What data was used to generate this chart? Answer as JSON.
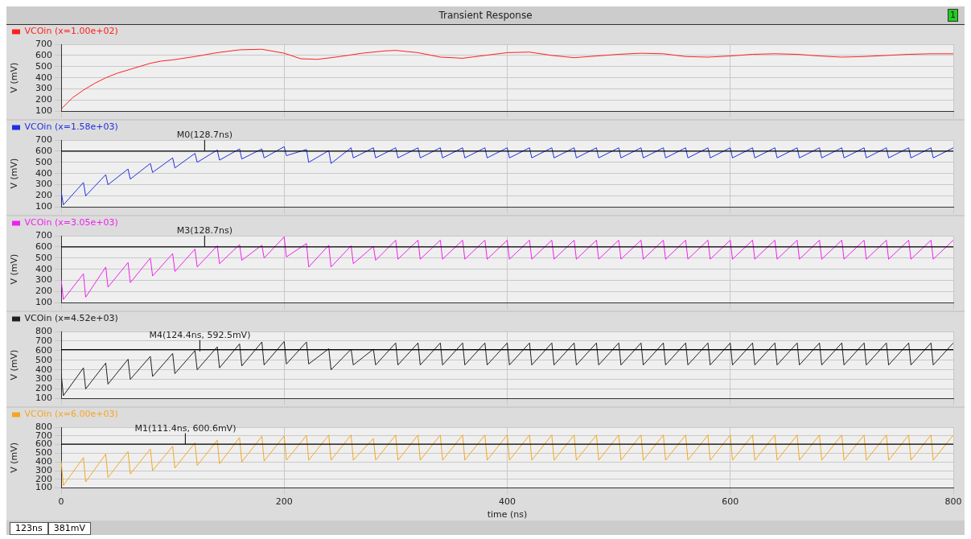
{
  "chart_data": [
    {
      "type": "line",
      "title": "Transient Response",
      "ylabel": "V (mV)",
      "xlim": [
        0,
        800
      ],
      "xticks": [
        0,
        200,
        400,
        600,
        800
      ],
      "ylim": [
        100,
        700
      ],
      "yticks": [
        100,
        200,
        300,
        400,
        500,
        600,
        700
      ],
      "grid": true,
      "legend": "top left",
      "tick_labels": "y",
      "annotations": [
        "1"
      ],
      "series": [
        {
          "name": "VCOin (x=1.00e+02)",
          "color": "#ff2020",
          "x": [
            0,
            10,
            20,
            30,
            40,
            50,
            60,
            70,
            80,
            90,
            100,
            120,
            140,
            160,
            180,
            200,
            215,
            230,
            250,
            270,
            290,
            300,
            320,
            340,
            360,
            380,
            400,
            420,
            440,
            460,
            480,
            500,
            520,
            540,
            560,
            580,
            600,
            620,
            640,
            660,
            680,
            700,
            720,
            740,
            760,
            780,
            800
          ],
          "values": [
            120,
            220,
            290,
            350,
            400,
            440,
            470,
            500,
            530,
            550,
            560,
            590,
            625,
            650,
            655,
            620,
            570,
            565,
            590,
            620,
            640,
            645,
            625,
            585,
            575,
            600,
            625,
            630,
            600,
            580,
            595,
            610,
            620,
            615,
            590,
            585,
            595,
            610,
            615,
            610,
            595,
            585,
            590,
            600,
            610,
            615,
            615
          ]
        }
      ]
    },
    {
      "type": "line",
      "ylabel": "V (mV)",
      "xlim": [
        0,
        800
      ],
      "xticks": [
        0,
        200,
        400,
        600,
        800
      ],
      "ylim": [
        100,
        700
      ],
      "yticks": [
        100,
        200,
        300,
        400,
        500,
        600,
        700
      ],
      "grid": true,
      "legend": "top left",
      "tick_labels": "y",
      "ref_lines": [
        {
          "axis": "y",
          "value": 600,
          "color": "#000000"
        }
      ],
      "annotations": [
        {
          "text": "M0(128.7ns)",
          "x": 128.7,
          "y": 600
        }
      ],
      "series": [
        {
          "name": "VCOin (x=1.58e+03)",
          "color": "#2030e0",
          "x": [
            0,
            2,
            20,
            22,
            40,
            42,
            60,
            62,
            80,
            82,
            100,
            102,
            120,
            122,
            140,
            142,
            160,
            162,
            180,
            182,
            200,
            202,
            220,
            222,
            240,
            242,
            260,
            262,
            280,
            282,
            300,
            302,
            320,
            322,
            340,
            342,
            360,
            362,
            380,
            382,
            400,
            402,
            420,
            422,
            440,
            442,
            460,
            462,
            480,
            482,
            500,
            502,
            520,
            522,
            540,
            542,
            560,
            562,
            580,
            582,
            600,
            602,
            620,
            622,
            640,
            642,
            660,
            662,
            680,
            682,
            700,
            702,
            720,
            722,
            740,
            742,
            760,
            762,
            780,
            782,
            800
          ],
          "values": [
            240,
            120,
            320,
            200,
            390,
            300,
            440,
            350,
            490,
            410,
            540,
            450,
            580,
            500,
            610,
            520,
            620,
            530,
            620,
            540,
            640,
            560,
            615,
            500,
            605,
            490,
            630,
            540,
            630,
            540,
            630,
            540,
            630,
            540,
            630,
            540,
            630,
            540,
            630,
            540,
            630,
            540,
            630,
            540,
            630,
            540,
            630,
            540,
            630,
            540,
            630,
            540,
            630,
            540,
            630,
            540,
            630,
            540,
            630,
            540,
            630,
            540,
            630,
            540,
            630,
            540,
            630,
            540,
            630,
            540,
            630,
            540,
            630,
            540,
            630,
            540,
            630,
            540,
            630,
            540,
            630
          ]
        }
      ]
    },
    {
      "type": "line",
      "ylabel": "V (mV)",
      "xlim": [
        0,
        800
      ],
      "xticks": [
        0,
        200,
        400,
        600,
        800
      ],
      "ylim": [
        100,
        700
      ],
      "yticks": [
        100,
        200,
        300,
        400,
        500,
        600,
        700
      ],
      "grid": true,
      "legend": "top left",
      "tick_labels": "y",
      "ref_lines": [
        {
          "axis": "y",
          "value": 600,
          "color": "#000000"
        }
      ],
      "annotations": [
        {
          "text": "M3(128.7ns)",
          "x": 128.7,
          "y": 600
        }
      ],
      "series": [
        {
          "name": "VCOin (x=3.05e+03)",
          "color": "#f020f0",
          "x": [
            0,
            2,
            20,
            22,
            40,
            42,
            60,
            62,
            80,
            82,
            100,
            102,
            120,
            122,
            140,
            142,
            160,
            162,
            180,
            182,
            200,
            202,
            220,
            222,
            240,
            242,
            260,
            262,
            280,
            282,
            300,
            302,
            320,
            322,
            340,
            342,
            360,
            362,
            380,
            382,
            400,
            402,
            420,
            422,
            440,
            442,
            460,
            462,
            480,
            482,
            500,
            502,
            520,
            522,
            540,
            542,
            560,
            562,
            580,
            582,
            600,
            602,
            620,
            622,
            640,
            642,
            660,
            662,
            680,
            682,
            700,
            702,
            720,
            722,
            740,
            742,
            760,
            762,
            780,
            782,
            800
          ],
          "values": [
            310,
            130,
            360,
            150,
            420,
            240,
            460,
            280,
            500,
            340,
            540,
            380,
            580,
            420,
            610,
            450,
            620,
            480,
            615,
            500,
            690,
            510,
            630,
            420,
            615,
            420,
            610,
            450,
            605,
            480,
            660,
            490,
            660,
            490,
            660,
            490,
            660,
            490,
            660,
            490,
            660,
            490,
            660,
            490,
            660,
            490,
            660,
            490,
            660,
            490,
            660,
            490,
            660,
            490,
            660,
            490,
            660,
            490,
            660,
            490,
            660,
            490,
            660,
            490,
            660,
            490,
            660,
            490,
            660,
            490,
            660,
            490,
            660,
            490,
            660,
            490,
            660,
            490,
            660,
            490,
            660
          ]
        }
      ]
    },
    {
      "type": "line",
      "ylabel": "V (mV)",
      "xlim": [
        0,
        800
      ],
      "xticks": [
        0,
        200,
        400,
        600,
        800
      ],
      "ylim": [
        100,
        800
      ],
      "yticks": [
        100,
        200,
        300,
        400,
        500,
        600,
        700,
        800
      ],
      "grid": true,
      "legend": "top left",
      "tick_labels": "y",
      "ref_lines": [
        {
          "axis": "y",
          "value": 610,
          "color": "#000000"
        }
      ],
      "annotations": [
        {
          "text": "M4(124.4ns, 592.5mV)",
          "x": 124.4,
          "y": 592.5
        }
      ],
      "series": [
        {
          "name": "VCOin (x=4.52e+03)",
          "color": "#202020",
          "x": [
            0,
            2,
            20,
            22,
            40,
            42,
            60,
            62,
            80,
            82,
            100,
            102,
            120,
            122,
            140,
            142,
            160,
            162,
            180,
            182,
            200,
            202,
            220,
            222,
            240,
            242,
            260,
            262,
            280,
            282,
            300,
            302,
            320,
            322,
            340,
            342,
            360,
            362,
            380,
            382,
            400,
            402,
            420,
            422,
            440,
            442,
            460,
            462,
            480,
            482,
            500,
            502,
            520,
            522,
            540,
            542,
            560,
            562,
            580,
            582,
            600,
            602,
            620,
            622,
            640,
            642,
            660,
            662,
            680,
            682,
            700,
            702,
            720,
            722,
            740,
            742,
            760,
            762,
            780,
            782,
            800
          ],
          "values": [
            360,
            130,
            420,
            200,
            470,
            250,
            510,
            300,
            540,
            330,
            570,
            360,
            600,
            400,
            640,
            420,
            670,
            440,
            690,
            450,
            695,
            460,
            690,
            460,
            620,
            400,
            615,
            450,
            615,
            450,
            680,
            450,
            680,
            450,
            680,
            450,
            680,
            450,
            680,
            450,
            680,
            450,
            680,
            450,
            680,
            450,
            680,
            450,
            680,
            450,
            680,
            450,
            680,
            450,
            680,
            450,
            680,
            450,
            680,
            450,
            680,
            450,
            680,
            450,
            680,
            450,
            680,
            450,
            680,
            450,
            680,
            450,
            680,
            450,
            680,
            450,
            680,
            450,
            680,
            450,
            680
          ]
        }
      ]
    },
    {
      "type": "line",
      "xlabel": "time (ns)",
      "ylabel": "V (mV)",
      "xlim": [
        0,
        800
      ],
      "xticks": [
        0,
        200,
        400,
        600,
        800
      ],
      "ylim": [
        100,
        800
      ],
      "yticks": [
        100,
        200,
        300,
        400,
        500,
        600,
        700,
        800
      ],
      "grid": true,
      "legend": "top left",
      "ref_lines": [
        {
          "axis": "y",
          "value": 605,
          "color": "#000000"
        }
      ],
      "annotations": [
        {
          "text": "M1(111.4ns, 600.6mV)",
          "x": 111.4,
          "y": 600.6
        },
        "123ns",
        "381mV"
      ],
      "series": [
        {
          "name": "VCOin (x=6.00e+03)",
          "color": "#f5a623",
          "x": [
            0,
            2,
            20,
            22,
            40,
            42,
            60,
            62,
            80,
            82,
            100,
            102,
            120,
            122,
            140,
            142,
            160,
            162,
            180,
            182,
            200,
            202,
            220,
            222,
            240,
            242,
            260,
            262,
            280,
            282,
            300,
            302,
            320,
            322,
            340,
            342,
            360,
            362,
            380,
            382,
            400,
            402,
            420,
            422,
            440,
            442,
            460,
            462,
            480,
            482,
            500,
            502,
            520,
            522,
            540,
            542,
            560,
            562,
            580,
            582,
            600,
            602,
            620,
            622,
            640,
            642,
            660,
            662,
            680,
            682,
            700,
            702,
            720,
            722,
            740,
            742,
            760,
            762,
            780,
            782,
            800
          ],
          "values": [
            410,
            130,
            450,
            170,
            490,
            220,
            520,
            260,
            550,
            300,
            580,
            330,
            620,
            360,
            650,
            380,
            680,
            400,
            695,
            410,
            700,
            420,
            705,
            420,
            710,
            420,
            710,
            420,
            670,
            420,
            710,
            420,
            710,
            420,
            710,
            420,
            710,
            420,
            710,
            420,
            710,
            420,
            710,
            420,
            710,
            420,
            710,
            420,
            710,
            420,
            710,
            420,
            710,
            420,
            710,
            420,
            710,
            420,
            710,
            420,
            710,
            420,
            710,
            420,
            710,
            420,
            710,
            420,
            710,
            420,
            710,
            420,
            710,
            420,
            710,
            420,
            710,
            420,
            710,
            420,
            710
          ]
        }
      ]
    }
  ]
}
